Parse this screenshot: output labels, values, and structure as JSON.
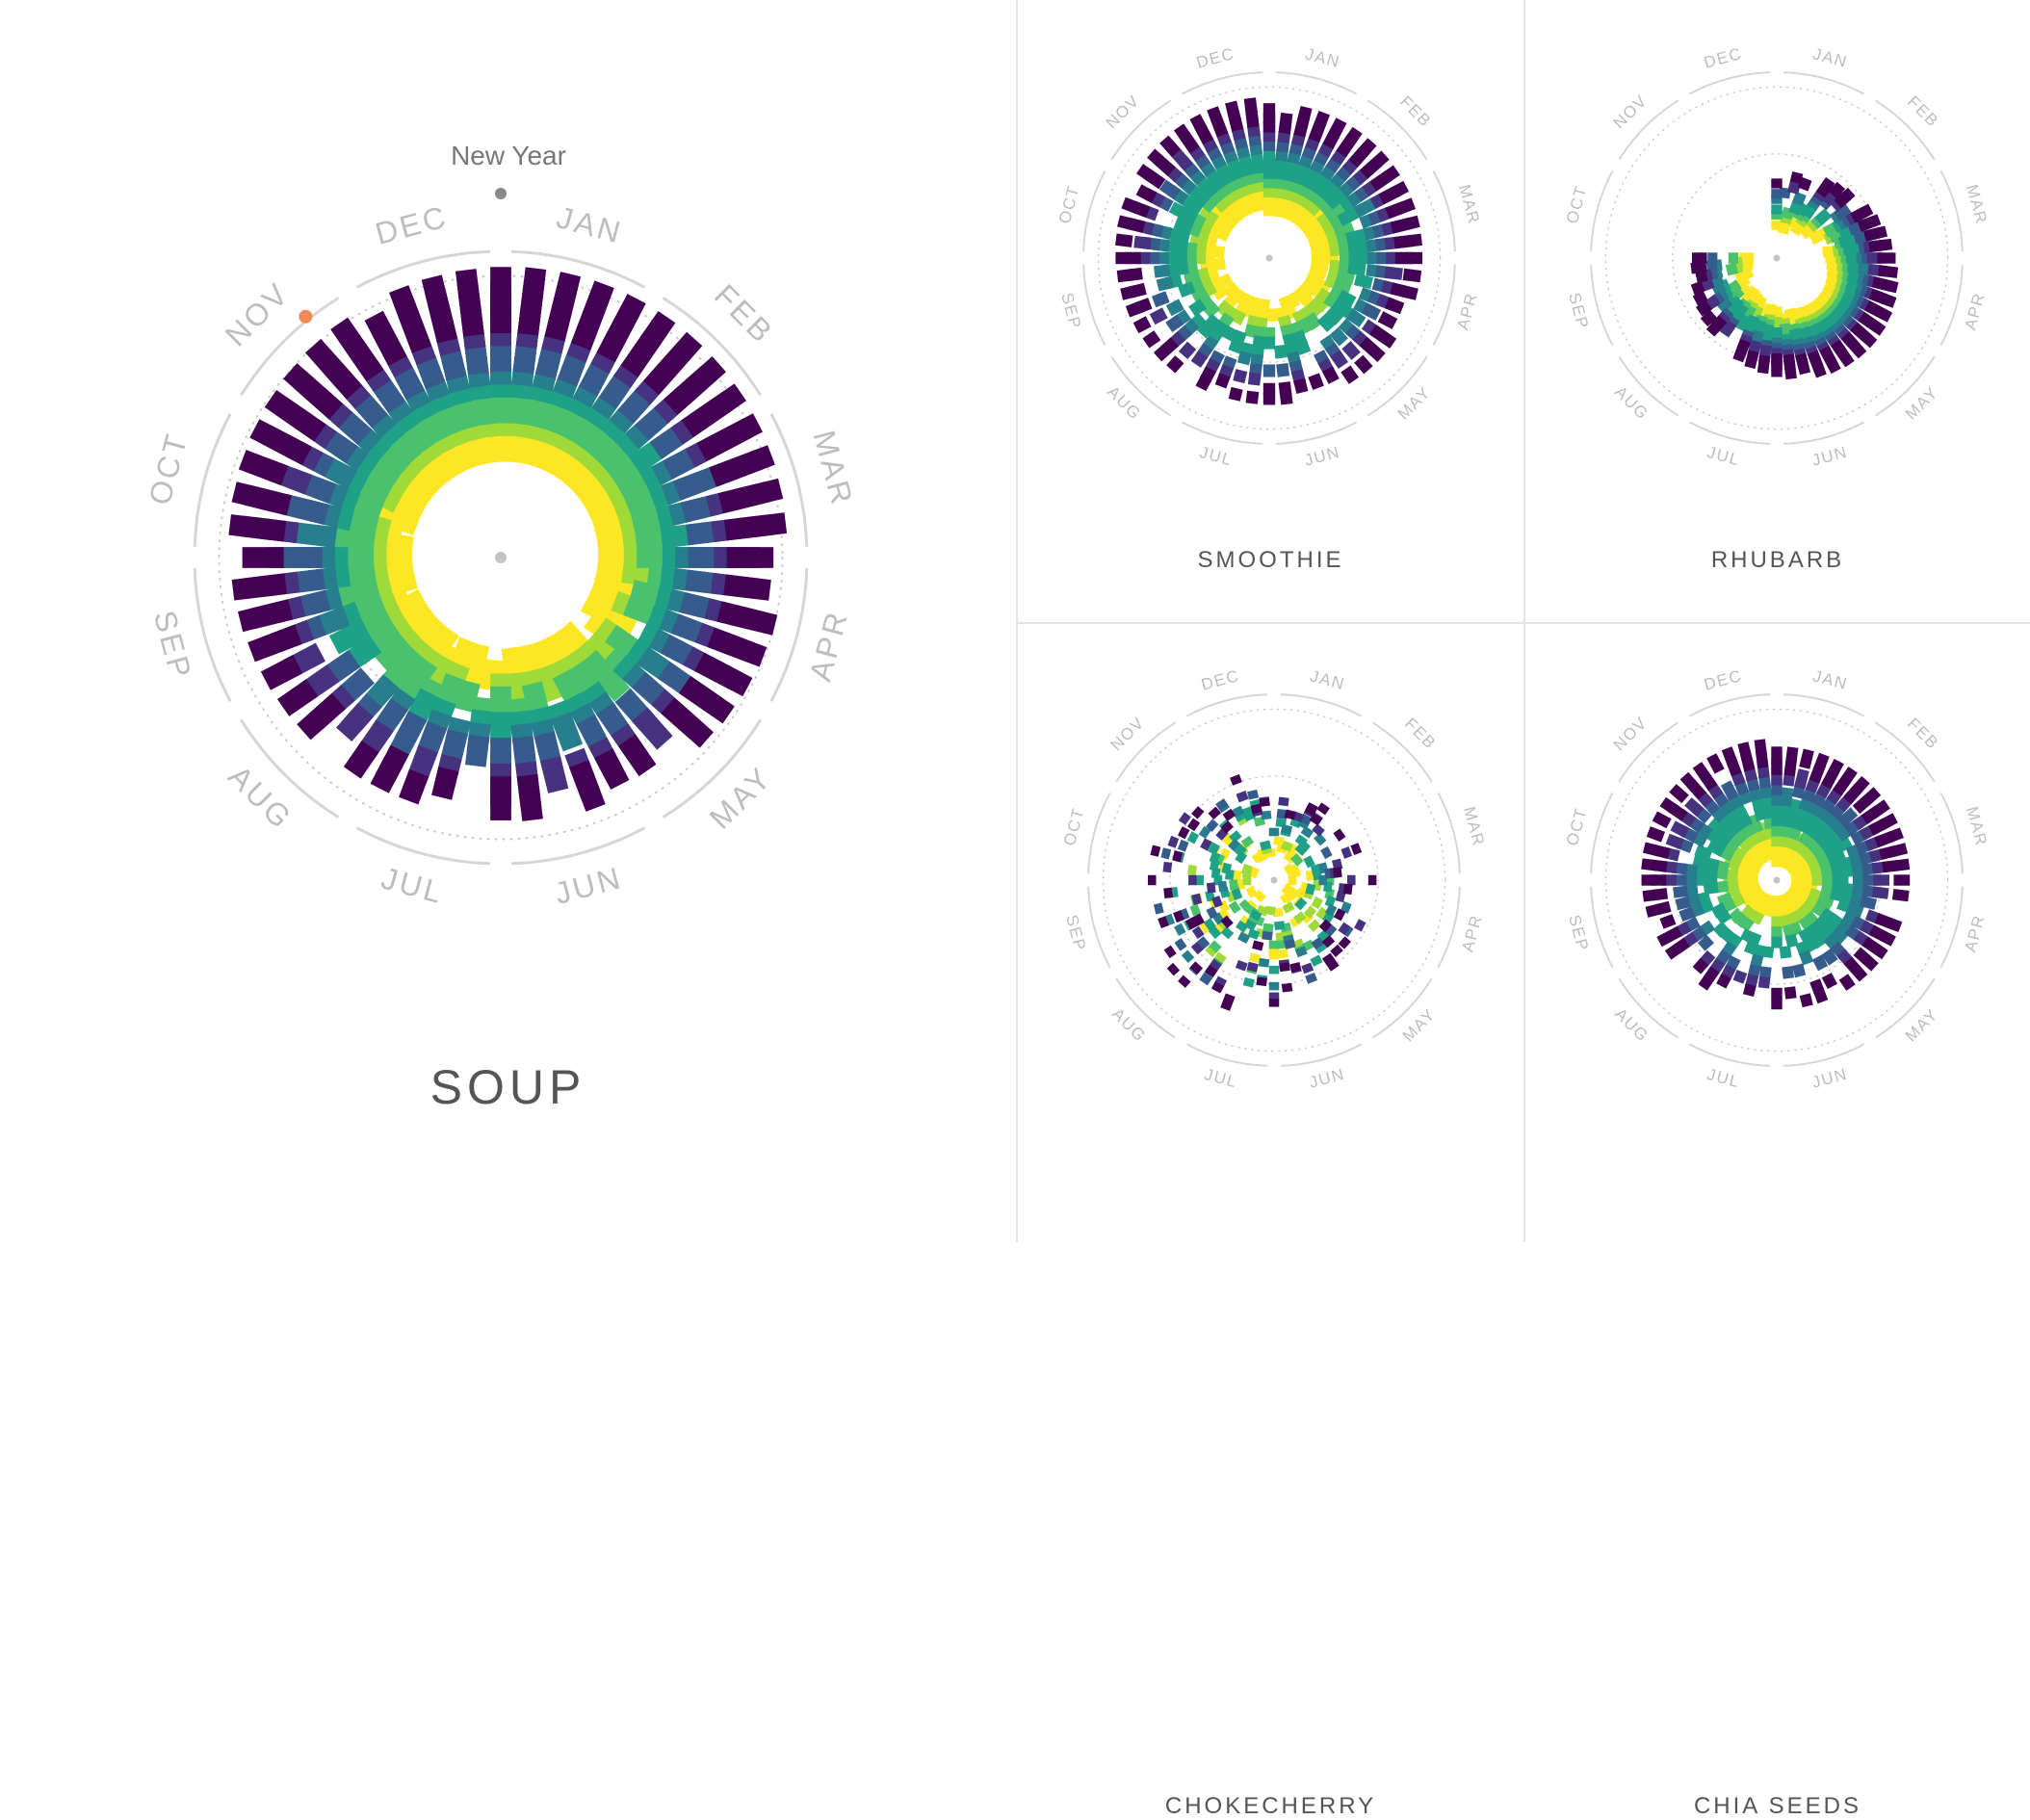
{
  "palette": {
    "ring": "#d6d6d6",
    "dotted": "#c9c9c9",
    "month_label": "#bdbdbd",
    "center_dot": "#c4c4c4",
    "new_year_dot": "#8a8a8a",
    "new_year_label": "#777777",
    "highlight_dot": "#f08a5a",
    "viridis": [
      "#440154",
      "#46327e",
      "#365c8d",
      "#277f8e",
      "#1fa187",
      "#4ac16d",
      "#a0da39",
      "#fde725"
    ]
  },
  "chart_data": [
    {
      "type": "radial-spiral",
      "title": "SOUP",
      "months": [
        "JAN",
        "FEB",
        "MAR",
        "APR",
        "MAY",
        "JUN",
        "JUL",
        "AUG",
        "SEP",
        "OCT",
        "NOV",
        "DEC"
      ],
      "annotation": {
        "label": "New Year",
        "month_position": 0
      },
      "highlight_marker": {
        "month_position": 10.7
      },
      "pattern": "dense-ring",
      "peak_month_position": 0.5
    },
    {
      "type": "radial-spiral",
      "title": "SMOOTHIE",
      "months": [
        "JAN",
        "FEB",
        "MAR",
        "APR",
        "MAY",
        "JUN",
        "JUL",
        "AUG",
        "SEP",
        "OCT",
        "NOV",
        "DEC"
      ],
      "pattern": "spiral",
      "peak_month_position": 0.5
    },
    {
      "type": "radial-spiral",
      "title": "RHUBARB",
      "months": [
        "JAN",
        "FEB",
        "MAR",
        "APR",
        "MAY",
        "JUN",
        "JUL",
        "AUG",
        "SEP",
        "OCT",
        "NOV",
        "DEC"
      ],
      "pattern": "seasonal-blob",
      "peak_month_position": 4.5
    },
    {
      "type": "radial-spiral",
      "title": "CHOKECHERRY",
      "months": [
        "JAN",
        "FEB",
        "MAR",
        "APR",
        "MAY",
        "JUN",
        "JUL",
        "AUG",
        "SEP",
        "OCT",
        "NOV",
        "DEC"
      ],
      "pattern": "scatter",
      "peak_month_position": 7.5
    },
    {
      "type": "radial-spiral",
      "title": "CHIA SEEDS",
      "months": [
        "JAN",
        "FEB",
        "MAR",
        "APR",
        "MAY",
        "JUN",
        "JUL",
        "AUG",
        "SEP",
        "OCT",
        "NOV",
        "DEC"
      ],
      "pattern": "spiral-wide",
      "peak_month_position": 0.5
    }
  ]
}
